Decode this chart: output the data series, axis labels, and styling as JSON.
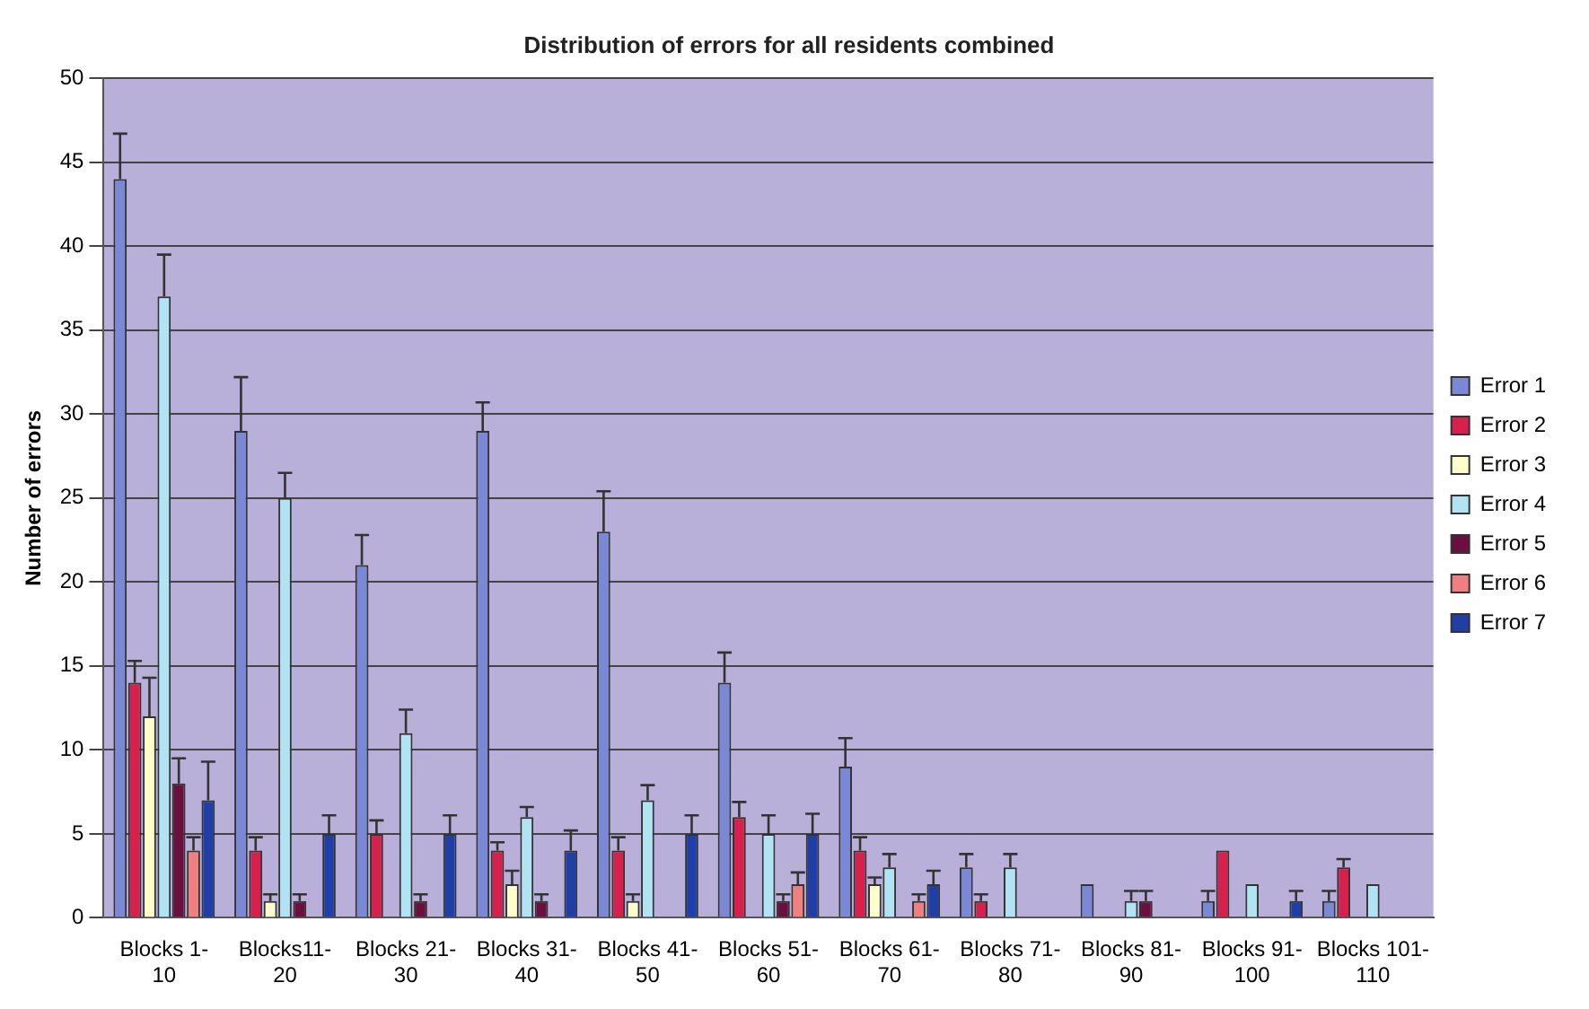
{
  "chart_data": {
    "type": "bar",
    "title": "Distribution of errors for all residents combined",
    "ylabel": "Number of errors",
    "categories": [
      "Blocks 1-10",
      "Blocks11-20",
      "Blocks 21-30",
      "Blocks 31-40",
      "Blocks 41-50",
      "Blocks 51-60",
      "Blocks 61-70",
      "Blocks 71-80",
      "Blocks 81-90",
      "Blocks 91-100",
      "Blocks 101-110"
    ],
    "series": [
      {
        "name": "Error 1",
        "color": "#7b88d6",
        "values": [
          44,
          29,
          21,
          29,
          23,
          14,
          9,
          3,
          2,
          1,
          1
        ],
        "errors": [
          [
            44,
            46.7
          ],
          [
            29,
            32.2
          ],
          [
            21,
            22.8
          ],
          [
            29,
            30.7
          ],
          [
            23,
            25.4
          ],
          [
            14,
            15.8
          ],
          [
            9,
            10.7
          ],
          [
            3,
            3.8
          ],
          null,
          [
            1,
            1.6
          ],
          [
            1,
            1.6
          ]
        ]
      },
      {
        "name": "Error 2",
        "color": "#d8204c",
        "values": [
          14,
          4,
          5,
          4,
          4,
          6,
          4,
          1,
          0,
          4,
          3
        ],
        "errors": [
          [
            14,
            15.3
          ],
          [
            4,
            4.8
          ],
          [
            5,
            5.8
          ],
          [
            4,
            4.5
          ],
          [
            4,
            4.8
          ],
          [
            6,
            6.9
          ],
          [
            4,
            4.8
          ],
          [
            1,
            1.4
          ],
          null,
          null,
          [
            3,
            3.5
          ]
        ]
      },
      {
        "name": "Error 3",
        "color": "#ffffcc",
        "values": [
          12,
          1,
          0,
          2,
          1,
          0,
          2,
          0,
          0,
          0,
          0
        ],
        "errors": [
          [
            12,
            14.3
          ],
          [
            1,
            1.4
          ],
          null,
          [
            2,
            2.8
          ],
          [
            1,
            1.4
          ],
          null,
          [
            2,
            2.4
          ],
          null,
          null,
          null,
          null
        ]
      },
      {
        "name": "Error 4",
        "color": "#b0e4f2",
        "values": [
          37,
          25,
          11,
          6,
          7,
          5,
          3,
          3,
          1,
          2,
          2
        ],
        "errors": [
          [
            37,
            39.5
          ],
          [
            25,
            26.5
          ],
          [
            11,
            12.4
          ],
          [
            6,
            6.6
          ],
          [
            7,
            7.9
          ],
          [
            5,
            6.1
          ],
          [
            3,
            3.8
          ],
          [
            3,
            3.8
          ],
          [
            1,
            1.6
          ],
          null,
          null
        ]
      },
      {
        "name": "Error 5",
        "color": "#6b0f3e",
        "values": [
          8,
          1,
          1,
          1,
          0,
          1,
          0,
          0,
          1,
          0,
          0
        ],
        "errors": [
          [
            8,
            9.5
          ],
          [
            1,
            1.4
          ],
          [
            1,
            1.4
          ],
          [
            1,
            1.4
          ],
          null,
          [
            1,
            1.4
          ],
          null,
          null,
          [
            1,
            1.6
          ],
          null,
          null
        ]
      },
      {
        "name": "Error 6",
        "color": "#f08080",
        "values": [
          4,
          0,
          0,
          0,
          0,
          2,
          1,
          0,
          0,
          0,
          0
        ],
        "errors": [
          [
            4,
            4.8
          ],
          null,
          null,
          null,
          null,
          [
            2,
            2.7
          ],
          [
            1,
            1.4
          ],
          null,
          null,
          null,
          null
        ]
      },
      {
        "name": "Error 7",
        "color": "#1f3fa8",
        "values": [
          7,
          5,
          5,
          4,
          5,
          5,
          2,
          0,
          0,
          1,
          0
        ],
        "errors": [
          [
            7,
            9.3
          ],
          [
            5,
            6.1
          ],
          [
            5,
            6.1
          ],
          [
            4,
            5.2
          ],
          [
            5,
            6.1
          ],
          [
            5,
            6.2
          ],
          [
            2,
            2.8
          ],
          null,
          null,
          [
            1,
            1.6
          ],
          null
        ]
      }
    ],
    "ylim": [
      0,
      50
    ],
    "yticks": [
      0,
      5,
      10,
      15,
      20,
      25,
      30,
      35,
      40,
      45,
      50
    ],
    "grid": "y",
    "legend": "right"
  }
}
